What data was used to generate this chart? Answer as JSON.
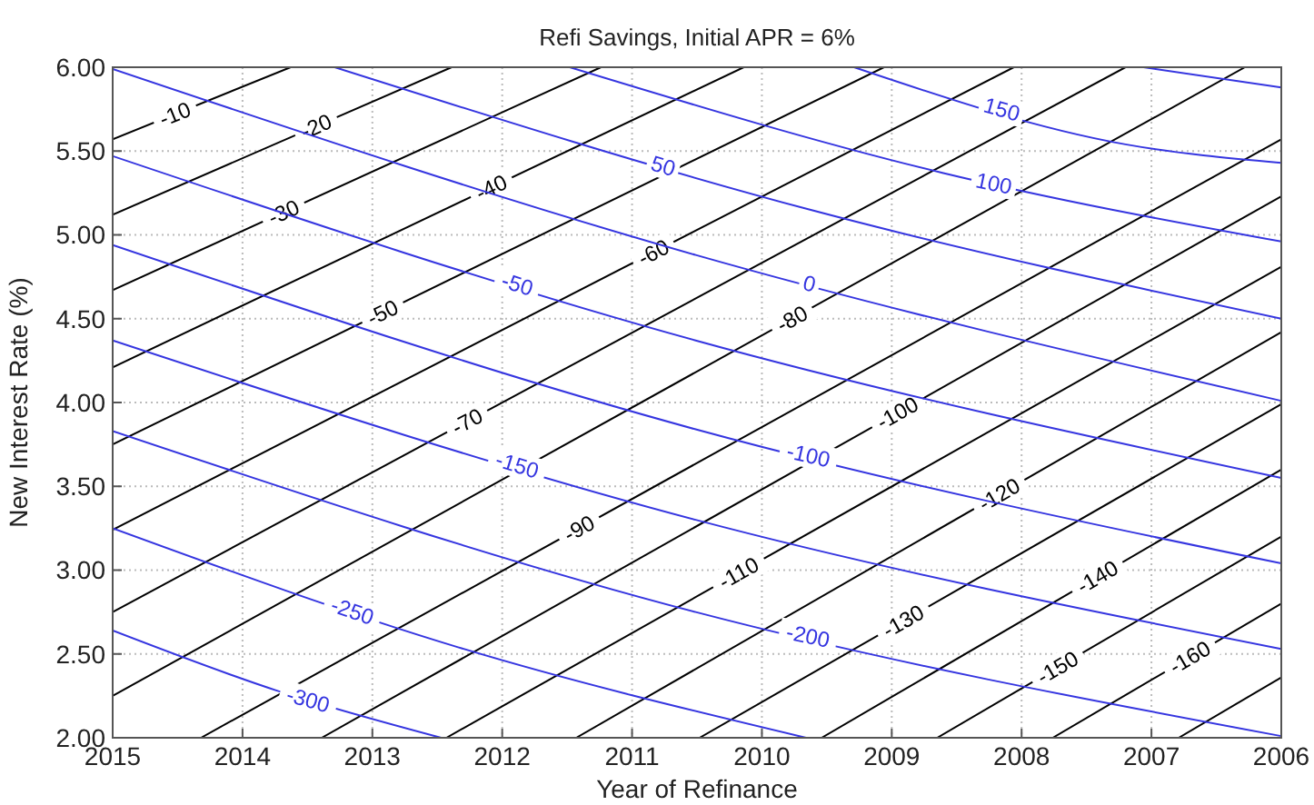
{
  "chart_data": {
    "type": "line",
    "title": "Refi Savings, Initial APR = 6%",
    "xlabel": "Year of Refinance",
    "ylabel": "New Interest Rate (%)",
    "xlim": [
      2015,
      2006
    ],
    "xticks": [
      2015,
      2014,
      2013,
      2012,
      2011,
      2010,
      2009,
      2008,
      2007,
      2006
    ],
    "ylim": [
      2,
      6
    ],
    "yticks": [
      {
        "value": 2,
        "label": "2.00"
      },
      {
        "value": 2.5,
        "label": "2.50"
      },
      {
        "value": 3,
        "label": "3.00"
      },
      {
        "value": 3.5,
        "label": "3.50"
      },
      {
        "value": 4,
        "label": "4.00"
      },
      {
        "value": 4.5,
        "label": "4.50"
      },
      {
        "value": 5,
        "label": "5.00"
      },
      {
        "value": 5.5,
        "label": "5.50"
      },
      {
        "value": 6,
        "label": "6.00"
      }
    ],
    "grid": true,
    "marker": "none",
    "line_style": "solid",
    "series": [
      {
        "name": "-10",
        "color": "#000000",
        "x": [
          2015,
          2013.63
        ],
        "values": [
          5.57,
          6
        ]
      },
      {
        "name": "-20",
        "color": "#000000",
        "x": [
          2015,
          2012.39
        ],
        "values": [
          5.12,
          6
        ]
      },
      {
        "name": "-30",
        "color": "#000000",
        "x": [
          2015,
          2011.24
        ],
        "values": [
          4.67,
          6
        ]
      },
      {
        "name": "-40",
        "color": "#000000",
        "x": [
          2015,
          2010.14
        ],
        "values": [
          4.21,
          6
        ]
      },
      {
        "name": "-50",
        "color": "#000000",
        "x": [
          2015,
          2009.06
        ],
        "values": [
          3.75,
          6
        ]
      },
      {
        "name": "-60",
        "color": "#000000",
        "x": [
          2015,
          2008.06
        ],
        "values": [
          3.24,
          6
        ]
      },
      {
        "name": "-70",
        "color": "#000000",
        "x": [
          2015,
          2007.2
        ],
        "values": [
          2.75,
          6
        ]
      },
      {
        "name": "-80",
        "color": "#000000",
        "x": [
          2015,
          2006.28
        ],
        "values": [
          2.25,
          6
        ]
      },
      {
        "name": "-90",
        "color": "#000000",
        "x": [
          2014.32,
          2006
        ],
        "values": [
          2,
          5.57
        ]
      },
      {
        "name": "-100",
        "color": "#000000",
        "x": [
          2013.39,
          2006
        ],
        "values": [
          2,
          5.23
        ]
      },
      {
        "name": "-110",
        "color": "#000000",
        "x": [
          2012.43,
          2006
        ],
        "values": [
          2,
          4.81
        ]
      },
      {
        "name": "-120",
        "color": "#000000",
        "x": [
          2011.43,
          2006
        ],
        "values": [
          2,
          4.42
        ]
      },
      {
        "name": "-130",
        "color": "#000000",
        "x": [
          2010.48,
          2006
        ],
        "values": [
          2,
          3.99
        ]
      },
      {
        "name": "-140",
        "color": "#000000",
        "x": [
          2009.54,
          2006
        ],
        "values": [
          2,
          3.6
        ]
      },
      {
        "name": "-150",
        "color": "#000000",
        "x": [
          2008.65,
          2006
        ],
        "values": [
          2,
          3.2
        ]
      },
      {
        "name": "-160",
        "color": "#000000",
        "x": [
          2007.76,
          2006
        ],
        "values": [
          2,
          2.8
        ]
      },
      {
        "color": "#000000",
        "x": [
          2006.79,
          2006
        ],
        "values": [
          2,
          2.36
        ]
      },
      {
        "color": "#3535e0",
        "x": [
          2007.06,
          2006
        ],
        "values": [
          6,
          5.88
        ]
      },
      {
        "name": "150",
        "color": "#3535e0",
        "x": [
          2009.29,
          2007.2,
          2006
        ],
        "values": [
          6,
          5.54,
          5.43
        ]
      },
      {
        "name": "100",
        "color": "#3535e0",
        "x": [
          2011.48,
          2008.61,
          2006
        ],
        "values": [
          6,
          5.37,
          4.96
        ]
      },
      {
        "name": "50",
        "color": "#3535e0",
        "x": [
          2013.29,
          2009.63,
          2006
        ],
        "values": [
          6,
          5.15,
          4.5
        ]
      },
      {
        "name": "0",
        "color": "#3535e0",
        "x": [
          2015,
          2010.51,
          2006
        ],
        "values": [
          5.99,
          4.88,
          4.01
        ]
      },
      {
        "name": "-50",
        "color": "#3535e0",
        "x": [
          2015,
          2010.51,
          2006
        ],
        "values": [
          5.47,
          4.37,
          3.55
        ]
      },
      {
        "name": "-100",
        "color": "#3535e0",
        "x": [
          2015,
          2010.51,
          2006
        ],
        "values": [
          4.94,
          3.84,
          3.04
        ]
      },
      {
        "name": "-150",
        "color": "#3535e0",
        "x": [
          2015,
          2010.51,
          2006
        ],
        "values": [
          4.37,
          3.3,
          2.53
        ]
      },
      {
        "name": "-200",
        "color": "#3535e0",
        "x": [
          2015,
          2010.51,
          2006
        ],
        "values": [
          3.83,
          2.75,
          2.01
        ]
      },
      {
        "name": "-250",
        "color": "#3535e0",
        "x": [
          2015,
          2012.34,
          2009.66
        ],
        "values": [
          3.25,
          2.54,
          2
        ]
      },
      {
        "name": "-300",
        "color": "#3535e0",
        "x": [
          2015,
          2013.73,
          2012.47
        ],
        "values": [
          2.64,
          2.28,
          2
        ]
      }
    ]
  }
}
